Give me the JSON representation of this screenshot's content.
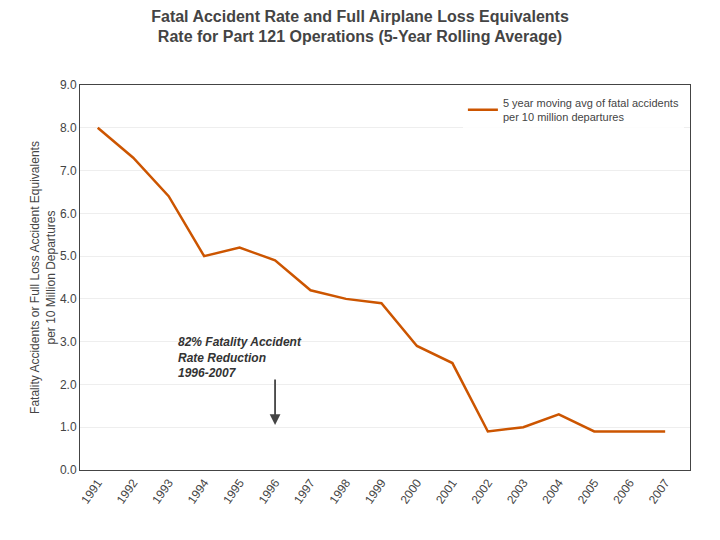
{
  "chart_data": {
    "type": "line",
    "title": "Fatal Accident Rate and Full Airplane Loss Equivalents\nRate for Part 121 Operations (5-Year Rolling Average)",
    "ylabel": "Fatality Accidents or Full Loss Accident Equivalents\nper 10 Million Departures",
    "x": [
      1991,
      1992,
      1993,
      1994,
      1995,
      1996,
      1997,
      1998,
      1999,
      2000,
      2001,
      2002,
      2003,
      2004,
      2005,
      2006,
      2007
    ],
    "series": [
      {
        "name": "5 year moving avg of fatal accidents\nper 10 million departures",
        "color": "#CC5500",
        "values": [
          8.0,
          7.3,
          6.4,
          5.0,
          5.2,
          4.9,
          4.2,
          4.0,
          3.9,
          2.9,
          2.5,
          0.9,
          1.0,
          1.3,
          0.9,
          0.9,
          0.9
        ]
      }
    ],
    "xlim": [
      1990.5,
      2007.7
    ],
    "xticks": [
      1991,
      1992,
      1993,
      1994,
      1995,
      1996,
      1997,
      1998,
      1999,
      2000,
      2001,
      2002,
      2003,
      2004,
      2005,
      2006,
      2007
    ],
    "ylim": [
      0.0,
      9.0
    ],
    "yticks": [
      {
        "value": 0.0,
        "label": "0.0"
      },
      {
        "value": 1.0,
        "label": "1.0"
      },
      {
        "value": 2.0,
        "label": "2.0"
      },
      {
        "value": 3.0,
        "label": "3.0"
      },
      {
        "value": 4.0,
        "label": "4.0"
      },
      {
        "value": 5.0,
        "label": "5.0"
      },
      {
        "value": 6.0,
        "label": "6.0"
      },
      {
        "value": 7.0,
        "label": "7.0"
      },
      {
        "value": 8.0,
        "label": "8.0"
      },
      {
        "value": 9.0,
        "label": "9.0"
      }
    ],
    "grid": "y",
    "legend": "upper right",
    "annotations": [
      {
        "text": "82% Fatality Accident\nRate Reduction\n1996-2007",
        "x": 1993.2,
        "y": 3.2
      },
      {
        "x": 1996.0,
        "y": 1.05,
        "arrow_from_y": 2.15
      }
    ]
  }
}
